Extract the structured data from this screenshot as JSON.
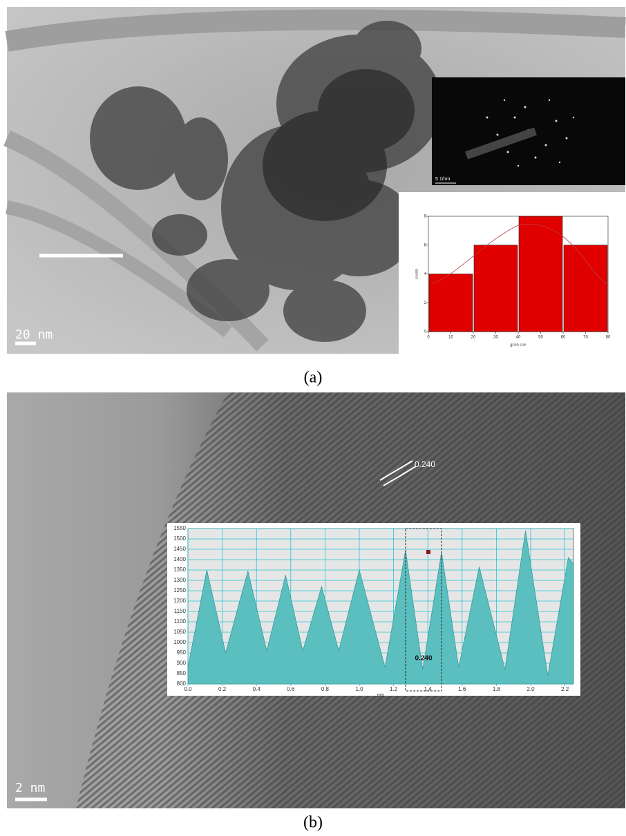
{
  "panels": [
    {
      "label": "(a)",
      "scale_bar": "20 nm",
      "diffraction_scale": "5 1/nm"
    },
    {
      "label": "(b)",
      "scale_bar": "2 nm",
      "annotation": "0.240"
    }
  ],
  "chart_data": [
    {
      "type": "histogram",
      "xlabel": "grain size",
      "ylabel": "counts",
      "bins": [
        0,
        20,
        40,
        60,
        80
      ],
      "values": [
        4,
        6,
        8,
        6
      ],
      "color": "#e00000",
      "xlim": [
        0,
        80
      ],
      "xticks": [
        0,
        10,
        20,
        30,
        40,
        50,
        60,
        70,
        80
      ],
      "ylim": [
        0,
        8
      ],
      "yticks": [
        0,
        2,
        4,
        6,
        8
      ],
      "grid": false
    },
    {
      "type": "area",
      "xlabel": "nm",
      "annotation": "0.240",
      "x": [
        0,
        0.11,
        0.22,
        0.35,
        0.46,
        0.57,
        0.67,
        0.78,
        0.88,
        1.0,
        1.15,
        1.27,
        1.37,
        1.48,
        1.58,
        1.7,
        1.85,
        1.97,
        2.1,
        2.22,
        2.25
      ],
      "values": [
        880,
        1350,
        950,
        1345,
        960,
        1325,
        960,
        1270,
        960,
        1350,
        880,
        1445,
        870,
        1435,
        880,
        1365,
        870,
        1540,
        840,
        1410,
        1380
      ],
      "color": "#5bbfbf",
      "xlim": [
        0,
        2.25
      ],
      "xticks": [
        {
          "value": 0,
          "label": "0.0"
        },
        0.2,
        0.4,
        0.6,
        0.8,
        {
          "value": 1,
          "label": "1.0"
        },
        1.2,
        1.4,
        1.6,
        1.8,
        {
          "value": 2,
          "label": "2.0"
        },
        2.2
      ],
      "ylim": [
        800,
        1550
      ],
      "yticks": [
        800,
        850,
        900,
        950,
        1000,
        1050,
        1100,
        1150,
        1200,
        1250,
        1300,
        1350,
        1400,
        1450,
        1500,
        1550
      ],
      "grid": true
    }
  ]
}
